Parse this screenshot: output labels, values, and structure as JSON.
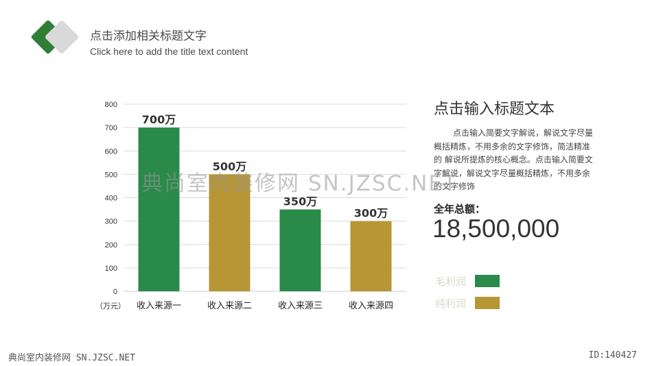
{
  "header": {
    "title_zh": "点击添加相关标题文字",
    "title_en": "Click here to add the title text content"
  },
  "colors": {
    "green": "#2a8a4a",
    "gold": "#b79636",
    "logo_green": "#2f7e35",
    "logo_gray": "#d9d9d9",
    "grid": "#d9d9d9"
  },
  "chart_data": {
    "type": "bar",
    "categories": [
      "收入来源一",
      "收入来源二",
      "收入来源三",
      "收入来源四"
    ],
    "values": [
      700,
      500,
      350,
      300
    ],
    "value_labels": [
      "700万",
      "500万",
      "350万",
      "300万"
    ],
    "bar_series": [
      "毛利润",
      "纯利润",
      "毛利润",
      "纯利润"
    ],
    "yticks": [
      0,
      100,
      200,
      300,
      400,
      500,
      600,
      700,
      800
    ],
    "ylim": [
      0,
      800
    ],
    "unit_label": "（万元）",
    "legend": [
      "毛利润",
      "纯利润"
    ],
    "legend_position": "right",
    "grid": true
  },
  "side": {
    "title": "点击输入标题文本",
    "desc": "点击输入简要文字解说，解说文字尽量概括精炼，不用多余的文字修饰，简洁精准的 解说所提炼的核心概念。点击输入简要文字解说，解说文字尽量概括精炼，不用多余的文字修饰",
    "total_label": "全年总额：",
    "total_value": "18,500,000"
  },
  "legend": {
    "items": [
      {
        "label": "毛利润",
        "color": "#2a8a4a"
      },
      {
        "label": "纯利润",
        "color": "#b79636"
      }
    ]
  },
  "watermark": "典尚室内装修网 SN.JZSC.NET",
  "footer": {
    "left": "典尚室内装修网 SN.JZSC.NET",
    "right": "ID:140427"
  }
}
